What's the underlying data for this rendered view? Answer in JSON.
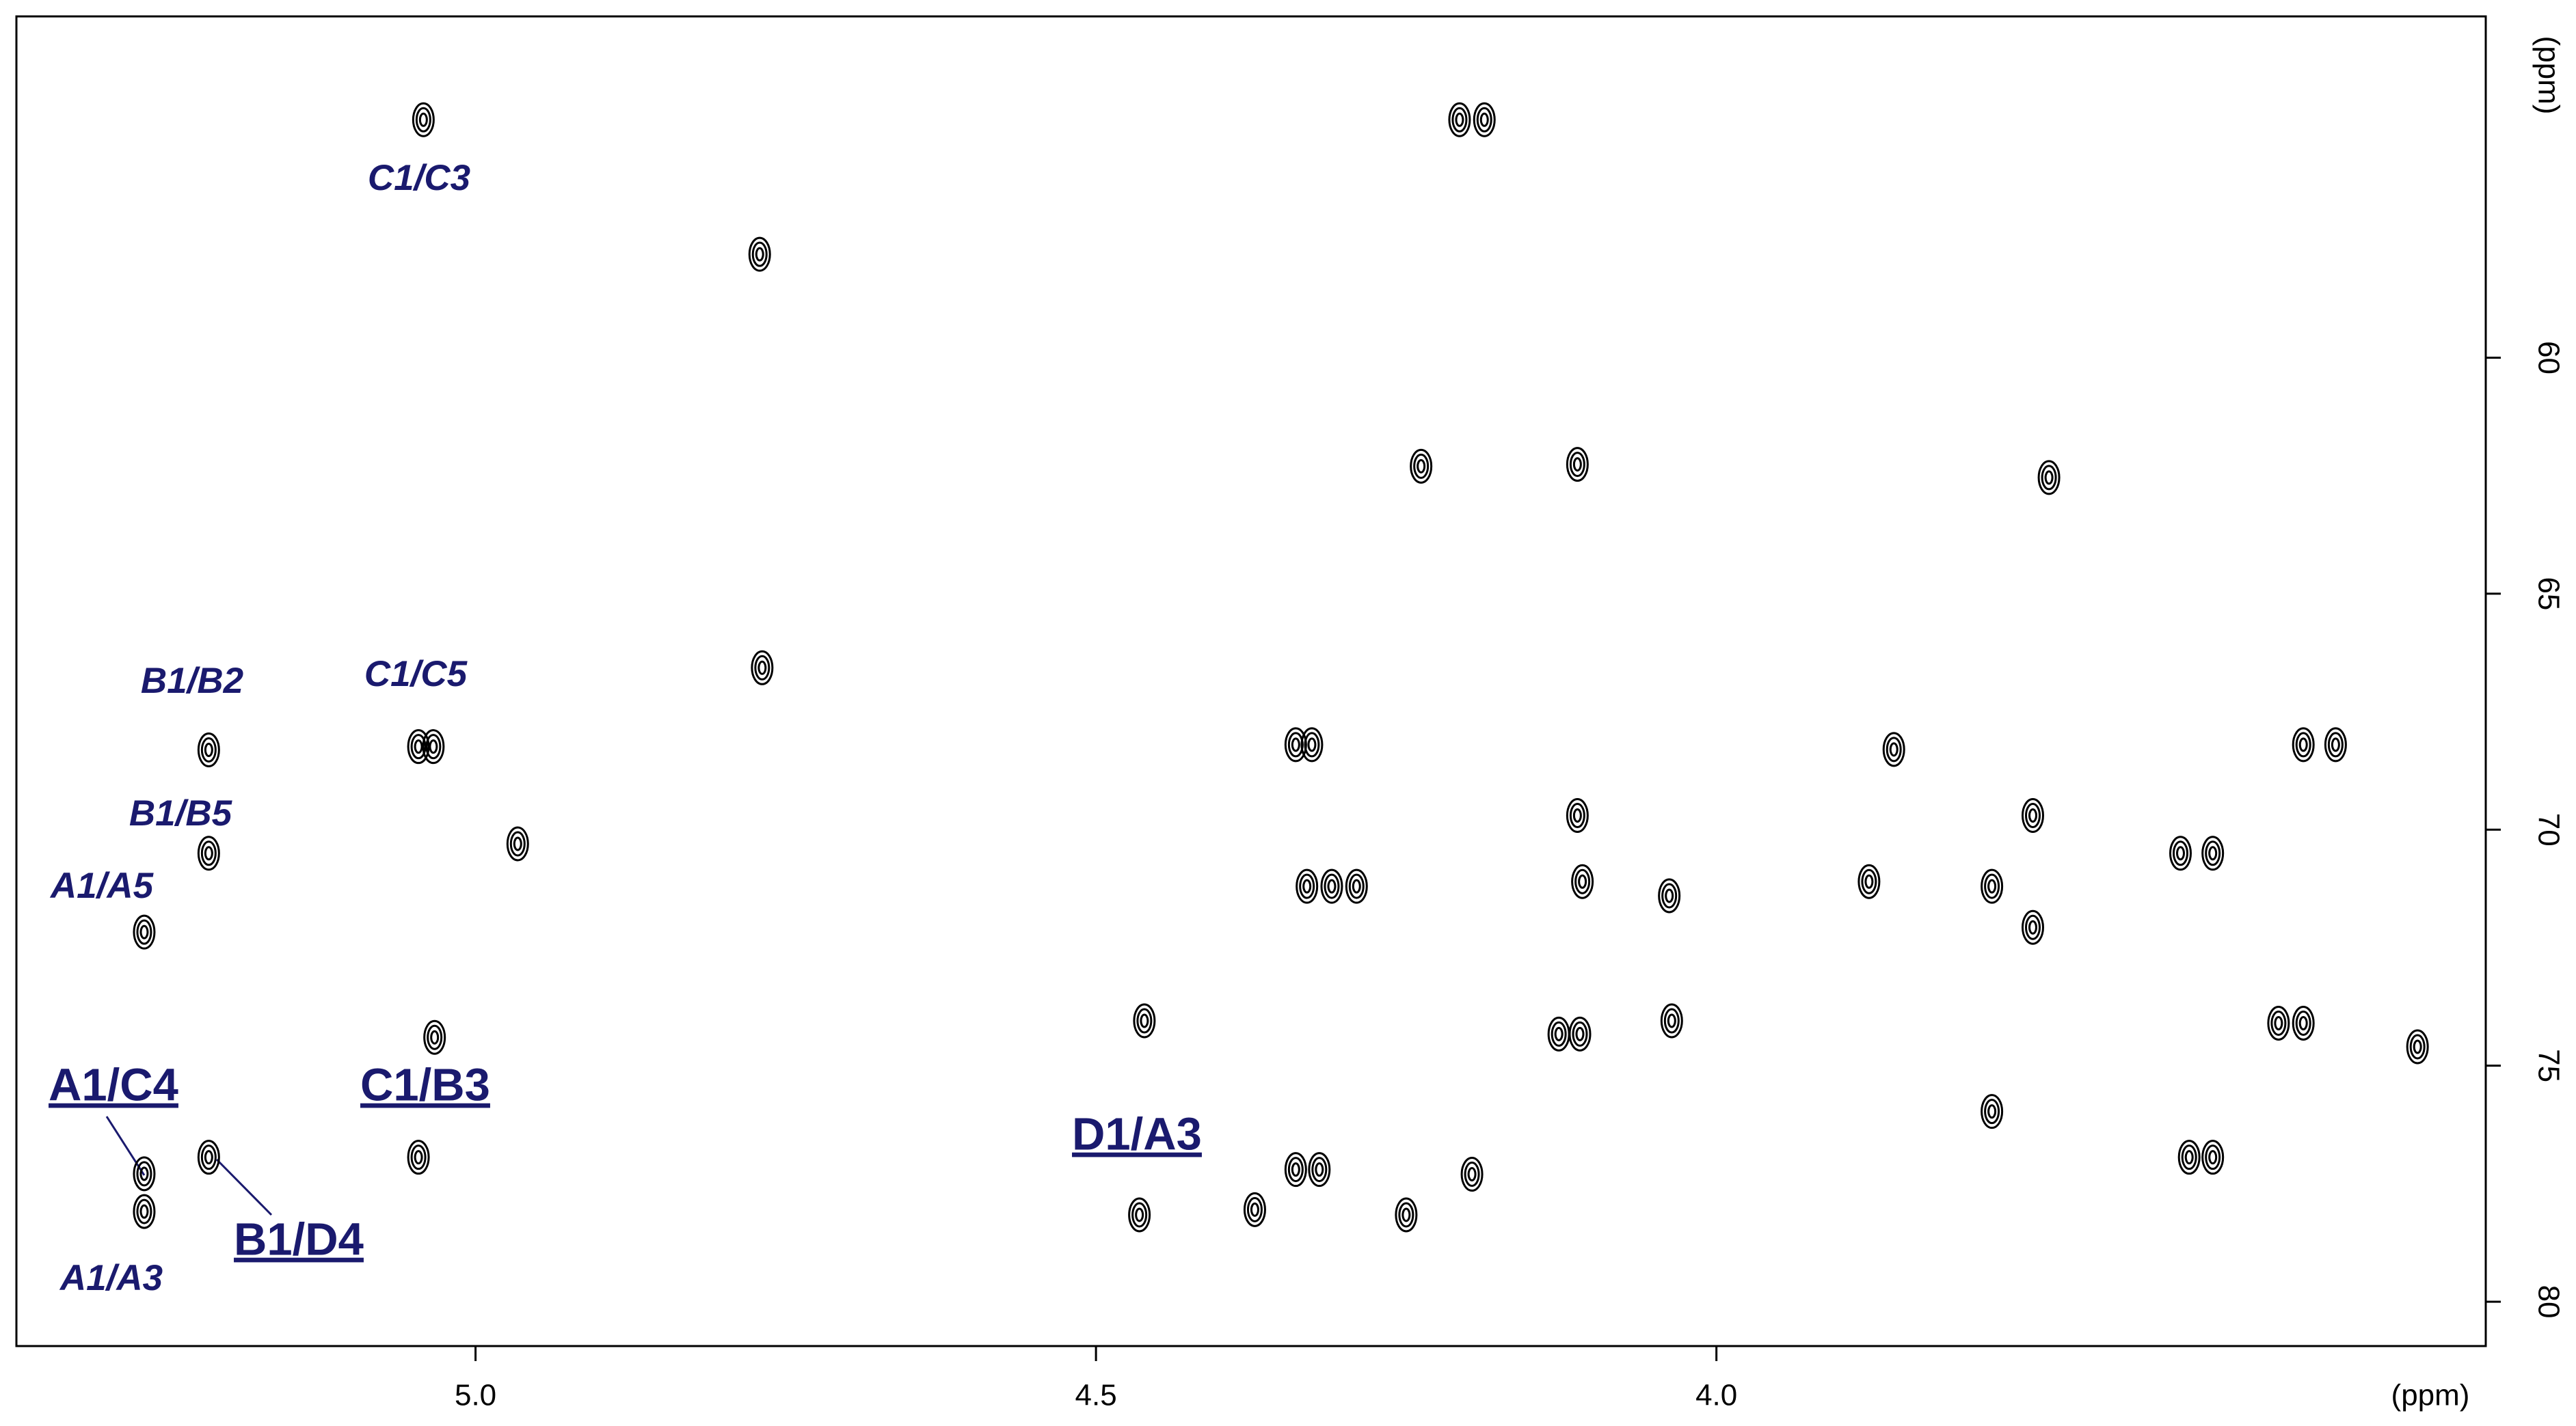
{
  "chart_data": {
    "type": "scatter",
    "color": "#000000",
    "xlim": [
      5.37,
      3.38
    ],
    "ylim": [
      80.94,
      52.77
    ],
    "xticks": [
      {
        "value": 5,
        "label": "5.0"
      },
      {
        "value": 4.5,
        "label": "4.5"
      },
      {
        "value": 4,
        "label": "4.0"
      }
    ],
    "yticks": [
      60,
      65,
      70,
      75,
      80
    ],
    "x_label": "(ppm)",
    "y_label": "(ppm)",
    "x": [
      5.042,
      4.207,
      4.187,
      4.771,
      4.112,
      3.732,
      4.238,
      4.769,
      5.215,
      5.046,
      5.034,
      4.339,
      4.326,
      3.857,
      3.527,
      3.501,
      4.966,
      5.215,
      4.112,
      3.745,
      3.626,
      3.6,
      5.267,
      4.33,
      4.31,
      4.29,
      4.108,
      4.038,
      3.877,
      3.778,
      3.745,
      5.033,
      4.461,
      4.127,
      4.11,
      4.036,
      3.547,
      3.527,
      3.435,
      3.778,
      5.267,
      5.267,
      5.215,
      5.046,
      4.465,
      4.372,
      4.339,
      4.32,
      4.25,
      4.197,
      3.619,
      3.6
    ],
    "values": [
      54.96,
      54.96,
      54.96,
      57.81,
      62.26,
      62.54,
      62.3,
      66.57,
      68.31,
      68.24,
      68.24,
      68.2,
      68.2,
      68.3,
      68.2,
      68.2,
      70.3,
      70.5,
      69.7,
      69.7,
      70.5,
      70.5,
      72.17,
      71.2,
      71.2,
      71.2,
      71.1,
      71.4,
      71.1,
      71.2,
      72.07,
      74.4,
      74.05,
      74.33,
      74.33,
      74.05,
      74.1,
      74.1,
      74.6,
      75.97,
      78.09,
      77.29,
      76.94,
      76.94,
      78.16,
      78.05,
      77.2,
      77.2,
      78.16,
      77.3,
      76.94,
      76.94
    ],
    "annotations": [
      "C1/C3",
      "B1/B2",
      "C1/C5",
      "B1/B5",
      "A1/A5",
      "A1/C4",
      "C1/B3",
      "D1/A3",
      "B1/D4",
      "A1/A3"
    ]
  }
}
